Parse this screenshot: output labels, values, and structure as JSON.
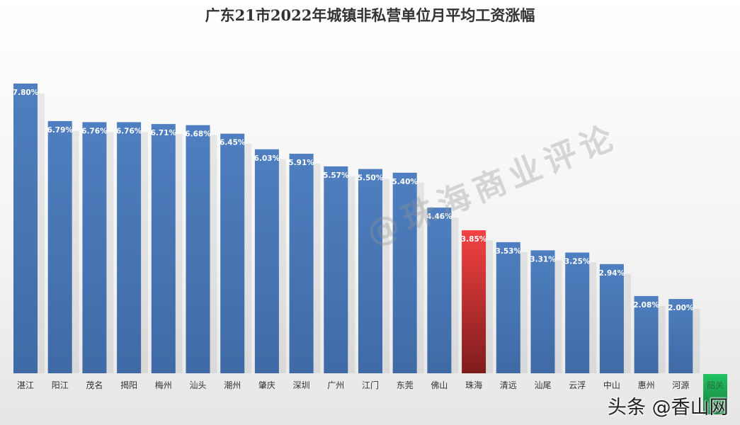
{
  "chart_data": {
    "type": "bar",
    "title": "广东21市2022年城镇非私营单位月平均工资涨幅",
    "categories": [
      "湛江",
      "阳江",
      "茂名",
      "揭阳",
      "梅州",
      "汕头",
      "潮州",
      "肇庆",
      "深圳",
      "广州",
      "江门",
      "东莞",
      "佛山",
      "珠海",
      "清远",
      "汕尾",
      "云浮",
      "中山",
      "惠州",
      "河源",
      "韶关"
    ],
    "values": [
      7.8,
      6.79,
      6.76,
      6.76,
      6.71,
      6.68,
      6.45,
      6.03,
      5.91,
      5.57,
      5.5,
      5.4,
      4.46,
      3.85,
      3.53,
      3.31,
      3.25,
      2.94,
      2.08,
      2.0,
      null
    ],
    "data_labels": [
      "7.80%",
      "6.79%",
      "6.76%",
      "6.76%",
      "6.71%",
      "6.68%",
      "6.45%",
      "6.03%",
      "5.91%",
      "5.57%",
      "5.50%",
      "5.40%",
      "4.46%",
      "3.85%",
      "3.53%",
      "3.31%",
      "3.25%",
      "2.94%",
      "2.08%",
      "2.00%",
      ""
    ],
    "unit": "%",
    "ylim": [
      0,
      9
    ],
    "grid": false,
    "legend": "none",
    "colors": {
      "default": "#4a78b5",
      "highlight": "#e83a3a",
      "highlight_category": "珠海",
      "label_box": "#1fbf5e",
      "label_box_category": "韶关"
    }
  },
  "watermarks": {
    "center": "@珠海商业评论",
    "corner": "头条 @香山网"
  }
}
